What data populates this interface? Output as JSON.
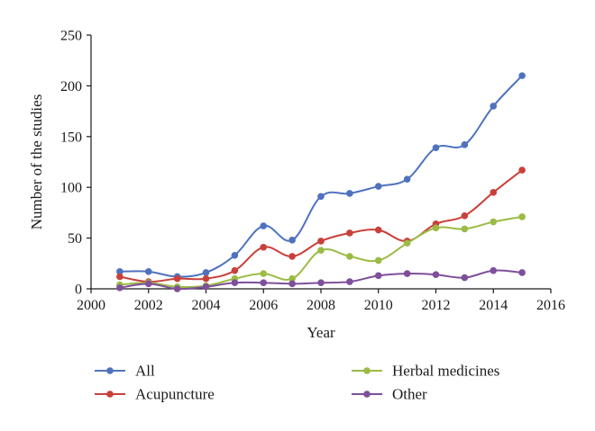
{
  "chart_data": {
    "type": "line",
    "xlabel": "Year",
    "ylabel": "Number of the studies",
    "xlim": [
      2000,
      2016
    ],
    "ylim": [
      0,
      250
    ],
    "xticks": [
      2000,
      2002,
      2004,
      2006,
      2008,
      2010,
      2012,
      2014,
      2016
    ],
    "yticks": [
      0,
      50,
      100,
      150,
      200,
      250
    ],
    "grid": false,
    "legend_placement": "bottom",
    "x": [
      2001,
      2002,
      2003,
      2004,
      2005,
      2006,
      2007,
      2008,
      2009,
      2010,
      2011,
      2012,
      2013,
      2014,
      2015
    ],
    "series": [
      {
        "name": "All",
        "color": "#4f72be",
        "values": [
          17,
          17,
          12,
          16,
          33,
          62,
          48,
          91,
          94,
          101,
          108,
          139,
          142,
          180,
          210
        ]
      },
      {
        "name": "Acupuncture",
        "color": "#c9403b",
        "values": [
          12,
          7,
          10,
          10,
          18,
          41,
          32,
          47,
          55,
          58,
          47,
          64,
          72,
          95,
          117
        ]
      },
      {
        "name": "Herbal medicines",
        "color": "#9bbb45",
        "values": [
          4,
          6,
          2,
          3,
          10,
          15,
          10,
          38,
          32,
          28,
          45,
          60,
          59,
          66,
          71
        ]
      },
      {
        "name": "Other",
        "color": "#7e4f9a",
        "values": [
          1,
          5,
          0,
          2,
          6,
          6,
          5,
          6,
          7,
          13,
          15,
          14,
          11,
          18,
          16
        ]
      }
    ]
  }
}
